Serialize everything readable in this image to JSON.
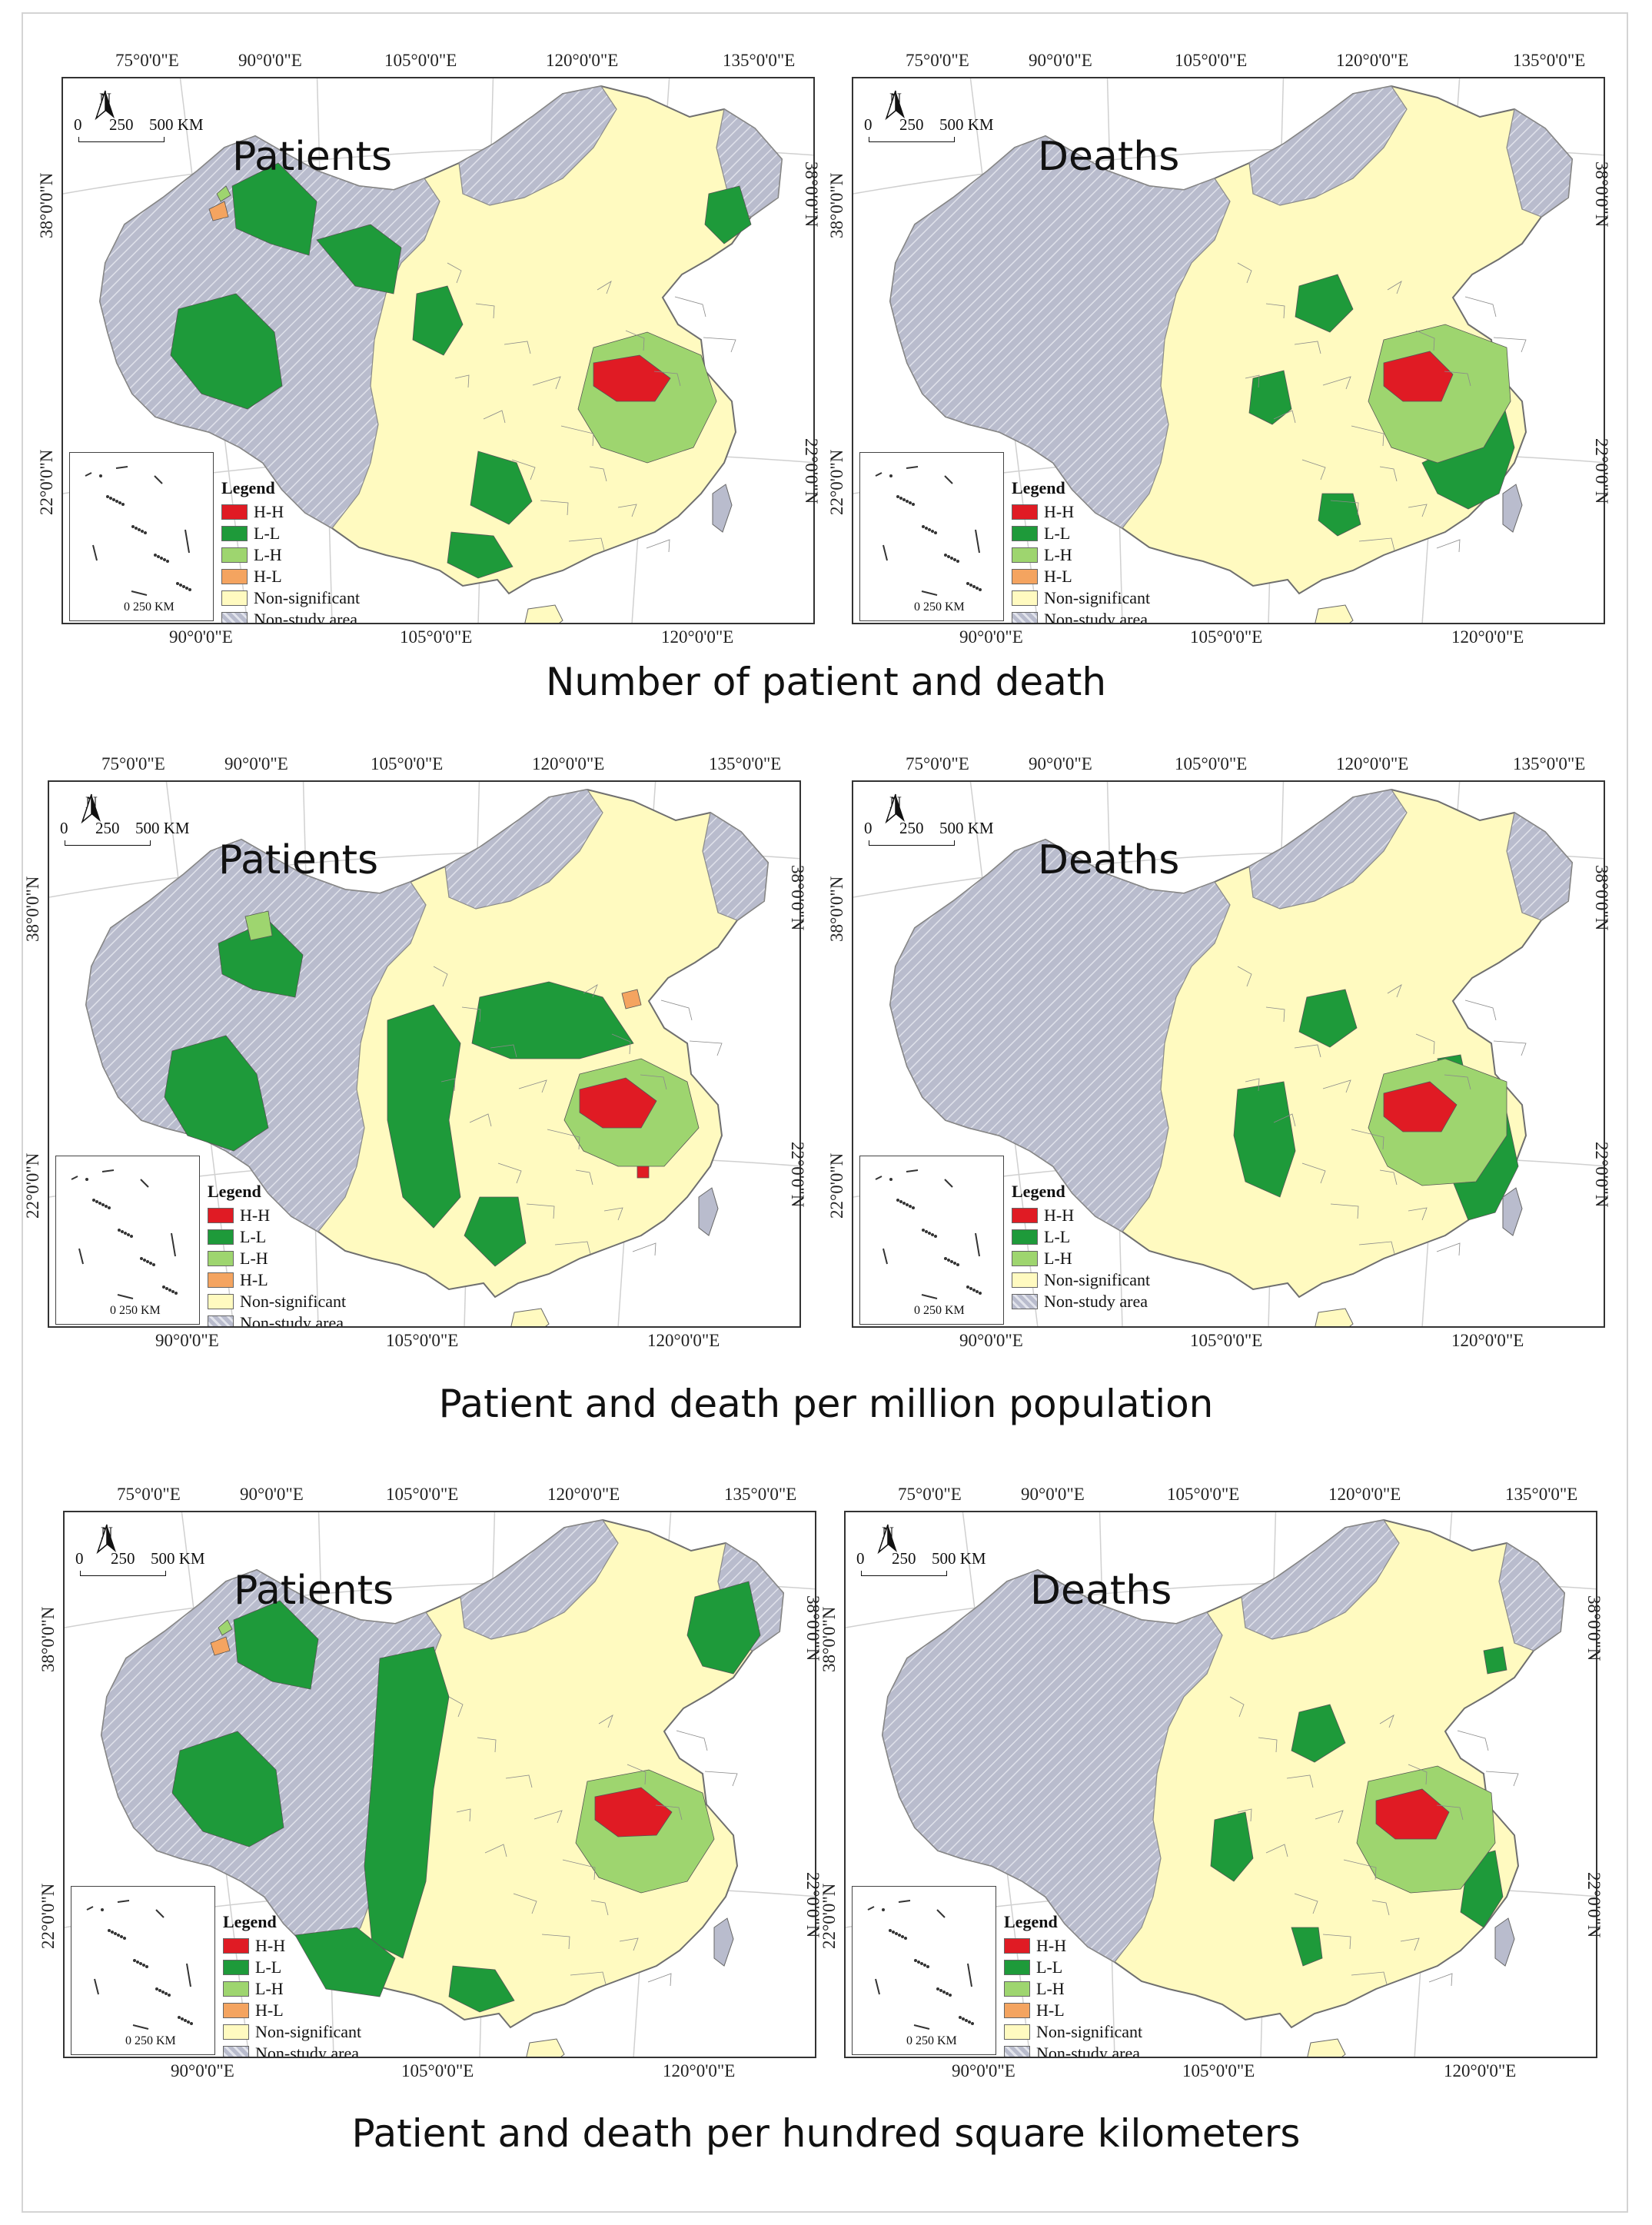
{
  "colors": {
    "hh": "#e01b24",
    "ll": "#1e9a3a",
    "lh": "#9ed56f",
    "hl": "#f4a460",
    "ns": "#fffac0",
    "nonstudy": "#b9bccd",
    "boundary": "#8a8a8a"
  },
  "rows": [
    {
      "section_title": "Number of patient and death",
      "panels": [
        {
          "title": "Patients",
          "top_ticks": [
            "75°0'0\"E",
            "90°0'0\"E",
            "105°0'0\"E",
            "120°0'0\"E",
            "135°0'0\"E"
          ],
          "bottom_ticks": [
            "90°0'0\"E",
            "105°0'0\"E",
            "120°0'0\"E"
          ],
          "left_ticks": [
            "38°0'0\"N",
            "22°0'0\"N"
          ],
          "right_ticks": [
            "38°0'0\"N",
            "22°0'0\"N"
          ],
          "north": "N",
          "scale": [
            "0",
            "250",
            "500 KM"
          ],
          "inset_scale": "0  250 KM",
          "legend_title": "Legend",
          "legend": [
            {
              "key": "hh",
              "label": "H-H"
            },
            {
              "key": "ll",
              "label": "L-L"
            },
            {
              "key": "lh",
              "label": "L-H"
            },
            {
              "key": "hl",
              "label": "H-L"
            },
            {
              "key": "ns",
              "label": "Non-significant"
            },
            {
              "key": "nonstudy",
              "label": "Non-study area"
            }
          ]
        },
        {
          "title": "Deaths",
          "top_ticks": [
            "75°0'0\"E",
            "90°0'0\"E",
            "105°0'0\"E",
            "120°0'0\"E",
            "135°0'0\"E"
          ],
          "bottom_ticks": [
            "90°0'0\"E",
            "105°0'0\"E",
            "120°0'0\"E"
          ],
          "left_ticks": [
            "38°0'0\"N",
            "22°0'0\"N"
          ],
          "right_ticks": [
            "38°0'0\"N",
            "22°0'0\"N"
          ],
          "north": "N",
          "scale": [
            "0",
            "250",
            "500 KM"
          ],
          "inset_scale": "0  250 KM",
          "legend_title": "Legend",
          "legend": [
            {
              "key": "hh",
              "label": "H-H"
            },
            {
              "key": "ll",
              "label": "L-L"
            },
            {
              "key": "lh",
              "label": "L-H"
            },
            {
              "key": "hl",
              "label": "H-L"
            },
            {
              "key": "ns",
              "label": "Non-significant"
            },
            {
              "key": "nonstudy",
              "label": "Non-study area"
            }
          ]
        }
      ]
    },
    {
      "section_title": "Patient and death per million population",
      "panels": [
        {
          "title": "Patients",
          "top_ticks": [
            "75°0'0\"E",
            "90°0'0\"E",
            "105°0'0\"E",
            "120°0'0\"E",
            "135°0'0\"E"
          ],
          "bottom_ticks": [
            "90°0'0\"E",
            "105°0'0\"E",
            "120°0'0\"E"
          ],
          "left_ticks": [
            "38°0'0\"N",
            "22°0'0\"N"
          ],
          "right_ticks": [
            "38°0'0\"N",
            "22°0'0\"N"
          ],
          "north": "N",
          "scale": [
            "0",
            "250",
            "500 KM"
          ],
          "inset_scale": "0  250 KM",
          "legend_title": "Legend",
          "legend": [
            {
              "key": "hh",
              "label": "H-H"
            },
            {
              "key": "ll",
              "label": "L-L"
            },
            {
              "key": "lh",
              "label": "L-H"
            },
            {
              "key": "hl",
              "label": "H-L"
            },
            {
              "key": "ns",
              "label": "Non-significant"
            },
            {
              "key": "nonstudy",
              "label": "Non-study area"
            }
          ]
        },
        {
          "title": "Deaths",
          "top_ticks": [
            "75°0'0\"E",
            "90°0'0\"E",
            "105°0'0\"E",
            "120°0'0\"E",
            "135°0'0\"E"
          ],
          "bottom_ticks": [
            "90°0'0\"E",
            "105°0'0\"E",
            "120°0'0\"E"
          ],
          "left_ticks": [
            "38°0'0\"N",
            "22°0'0\"N"
          ],
          "right_ticks": [
            "38°0'0\"N",
            "22°0'0\"N"
          ],
          "north": "N",
          "scale": [
            "0",
            "250",
            "500 KM"
          ],
          "inset_scale": "0  250 KM",
          "legend_title": "Legend",
          "legend": [
            {
              "key": "hh",
              "label": "H-H"
            },
            {
              "key": "ll",
              "label": "L-L"
            },
            {
              "key": "lh",
              "label": "L-H"
            },
            {
              "key": "ns",
              "label": "Non-significant"
            },
            {
              "key": "nonstudy",
              "label": "Non-study area"
            }
          ]
        }
      ]
    },
    {
      "section_title": "Patient and death per hundred square kilometers",
      "panels": [
        {
          "title": "Patients",
          "top_ticks": [
            "75°0'0\"E",
            "90°0'0\"E",
            "105°0'0\"E",
            "120°0'0\"E",
            "135°0'0\"E"
          ],
          "bottom_ticks": [
            "90°0'0\"E",
            "105°0'0\"E",
            "120°0'0\"E"
          ],
          "left_ticks": [
            "38°0'0\"N",
            "22°0'0\"N"
          ],
          "right_ticks": [
            "38°0'0\"N",
            "22°0'0\"N"
          ],
          "north": "N",
          "scale": [
            "0",
            "250",
            "500 KM"
          ],
          "inset_scale": "0  250 KM",
          "legend_title": "Legend",
          "legend": [
            {
              "key": "hh",
              "label": "H-H"
            },
            {
              "key": "ll",
              "label": "L-L"
            },
            {
              "key": "lh",
              "label": "L-H"
            },
            {
              "key": "hl",
              "label": "H-L"
            },
            {
              "key": "ns",
              "label": "Non-significant"
            },
            {
              "key": "nonstudy",
              "label": "Non-study area"
            }
          ]
        },
        {
          "title": "Deaths",
          "top_ticks": [
            "75°0'0\"E",
            "90°0'0\"E",
            "105°0'0\"E",
            "120°0'0\"E",
            "135°0'0\"E"
          ],
          "bottom_ticks": [
            "90°0'0\"E",
            "105°0'0\"E",
            "120°0'0\"E"
          ],
          "left_ticks": [
            "38°0'0\"N",
            "22°0'0\"N"
          ],
          "right_ticks": [
            "38°0'0\"N",
            "22°0'0\"N"
          ],
          "north": "N",
          "scale": [
            "0",
            "250",
            "500 KM"
          ],
          "inset_scale": "0  250 KM",
          "legend_title": "Legend",
          "legend": [
            {
              "key": "hh",
              "label": "H-H"
            },
            {
              "key": "ll",
              "label": "L-L"
            },
            {
              "key": "lh",
              "label": "L-H"
            },
            {
              "key": "hl",
              "label": "H-L"
            },
            {
              "key": "ns",
              "label": "Non-significant"
            },
            {
              "key": "nonstudy",
              "label": "Non-study area"
            }
          ]
        }
      ]
    }
  ]
}
